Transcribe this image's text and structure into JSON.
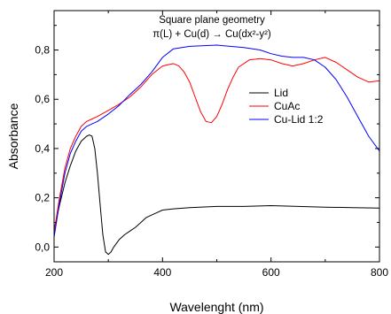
{
  "chart_data": {
    "type": "line",
    "xlabel": "Wavelenght (nm)",
    "ylabel": "Absorbance",
    "xlim": [
      200,
      800
    ],
    "ylim": [
      -0.06,
      0.96
    ],
    "xticks": [
      "200",
      "400",
      "600",
      "800"
    ],
    "yticks": [
      "0,0",
      "0,2",
      "0,4",
      "0,6",
      "0,8"
    ],
    "annotation": {
      "line1": "Square plane geometry",
      "line2": "π(L) + Cu(d) → Cu(dx²-y²)"
    },
    "legend_position": "right",
    "grid": false,
    "series": [
      {
        "name": "Lid",
        "color": "#000000",
        "x": [
          200,
          210,
          220,
          230,
          240,
          250,
          260,
          265,
          270,
          275,
          280,
          285,
          290,
          295,
          300,
          305,
          310,
          320,
          330,
          340,
          350,
          360,
          370,
          380,
          390,
          400,
          420,
          450,
          500,
          550,
          600,
          650,
          700,
          750,
          800
        ],
        "y": [
          0.07,
          0.17,
          0.26,
          0.33,
          0.39,
          0.43,
          0.45,
          0.455,
          0.45,
          0.4,
          0.3,
          0.17,
          0.05,
          -0.02,
          -0.03,
          -0.02,
          0.0,
          0.03,
          0.05,
          0.065,
          0.08,
          0.1,
          0.12,
          0.13,
          0.14,
          0.15,
          0.155,
          0.16,
          0.165,
          0.165,
          0.168,
          0.165,
          0.162,
          0.16,
          0.158
        ]
      },
      {
        "name": "CuAc",
        "color": "#ff0000",
        "x": [
          200,
          210,
          220,
          230,
          240,
          250,
          260,
          270,
          280,
          300,
          320,
          340,
          360,
          380,
          400,
          420,
          430,
          440,
          450,
          460,
          470,
          480,
          490,
          500,
          510,
          520,
          530,
          540,
          560,
          580,
          600,
          620,
          640,
          660,
          680,
          700,
          720,
          740,
          760,
          780,
          800
        ],
        "y": [
          0.06,
          0.2,
          0.32,
          0.4,
          0.45,
          0.49,
          0.51,
          0.52,
          0.53,
          0.555,
          0.58,
          0.61,
          0.65,
          0.7,
          0.735,
          0.745,
          0.735,
          0.71,
          0.67,
          0.61,
          0.55,
          0.51,
          0.505,
          0.53,
          0.58,
          0.64,
          0.69,
          0.73,
          0.76,
          0.765,
          0.76,
          0.745,
          0.735,
          0.745,
          0.76,
          0.77,
          0.75,
          0.72,
          0.69,
          0.67,
          0.675
        ]
      },
      {
        "name": "Cu-Lid 1:2",
        "color": "#0000ff",
        "x": [
          200,
          210,
          220,
          230,
          240,
          250,
          260,
          270,
          280,
          300,
          320,
          340,
          360,
          380,
          400,
          420,
          450,
          500,
          550,
          580,
          600,
          620,
          640,
          660,
          680,
          700,
          720,
          740,
          760,
          780,
          800
        ],
        "y": [
          0.04,
          0.18,
          0.3,
          0.38,
          0.43,
          0.47,
          0.49,
          0.5,
          0.51,
          0.54,
          0.575,
          0.62,
          0.66,
          0.71,
          0.77,
          0.805,
          0.815,
          0.82,
          0.81,
          0.8,
          0.785,
          0.775,
          0.77,
          0.77,
          0.76,
          0.73,
          0.68,
          0.61,
          0.53,
          0.45,
          0.39
        ]
      }
    ]
  }
}
